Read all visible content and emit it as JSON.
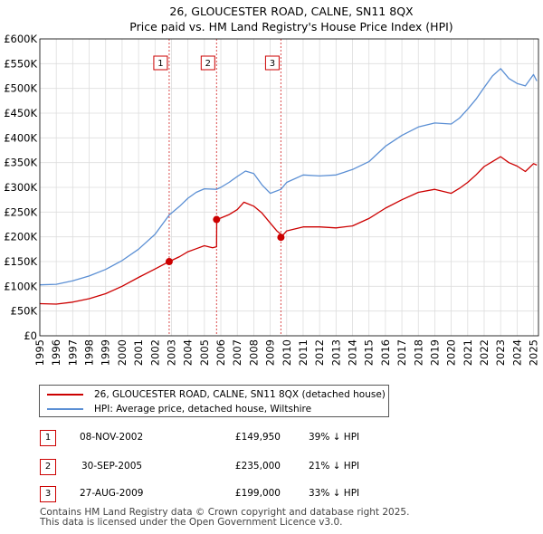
{
  "chart_data": {
    "type": "line",
    "title": "26, GLOUCESTER ROAD, CALNE, SN11 8QX",
    "subtitle": "Price paid vs. HM Land Registry's House Price Index (HPI)",
    "xlim": [
      1995,
      2025.3
    ],
    "ylim": [
      0,
      600000
    ],
    "x_ticks": [
      "1995",
      "1996",
      "1997",
      "1998",
      "1999",
      "2000",
      "2001",
      "2002",
      "2003",
      "2004",
      "2005",
      "2006",
      "2007",
      "2008",
      "2009",
      "2010",
      "2011",
      "2012",
      "2013",
      "2014",
      "2015",
      "2016",
      "2017",
      "2018",
      "2019",
      "2020",
      "2021",
      "2022",
      "2023",
      "2024",
      "2025"
    ],
    "y_ticks": [
      {
        "value": 0,
        "label": "£0"
      },
      {
        "value": 50000,
        "label": "£50K"
      },
      {
        "value": 100000,
        "label": "£100K"
      },
      {
        "value": 150000,
        "label": "£150K"
      },
      {
        "value": 200000,
        "label": "£200K"
      },
      {
        "value": 250000,
        "label": "£250K"
      },
      {
        "value": 300000,
        "label": "£300K"
      },
      {
        "value": 350000,
        "label": "£350K"
      },
      {
        "value": 400000,
        "label": "£400K"
      },
      {
        "value": 450000,
        "label": "£450K"
      },
      {
        "value": 500000,
        "label": "£500K"
      },
      {
        "value": 550000,
        "label": "£550K"
      },
      {
        "value": 600000,
        "label": "£600K"
      }
    ],
    "series": [
      {
        "name": "26, GLOUCESTER ROAD, CALNE, SN11 8QX (detached house)",
        "color": "#cc0000",
        "x": [
          1995.0,
          1996.0,
          1997.0,
          1998.0,
          1999.0,
          2000.0,
          2001.0,
          2002.0,
          2002.86,
          2003.5,
          2004.0,
          2004.5,
          2005.0,
          2005.5,
          2005.74,
          2005.75,
          2006.0,
          2006.5,
          2007.0,
          2007.4,
          2008.0,
          2008.5,
          2009.0,
          2009.4,
          2009.65,
          2009.66,
          2010.0,
          2011.0,
          2012.0,
          2013.0,
          2014.0,
          2015.0,
          2016.0,
          2017.0,
          2018.0,
          2019.0,
          2020.0,
          2020.5,
          2021.0,
          2021.5,
          2022.0,
          2022.5,
          2023.0,
          2023.5,
          2024.0,
          2024.5,
          2025.0,
          2025.2
        ],
        "y": [
          65000,
          64000,
          68000,
          75000,
          85000,
          100000,
          118000,
          135000,
          149950,
          160000,
          170000,
          176000,
          182000,
          178000,
          180000,
          235000,
          238000,
          245000,
          255000,
          270000,
          262000,
          248000,
          228000,
          212000,
          205000,
          199000,
          212000,
          220000,
          220000,
          218000,
          222000,
          237000,
          258000,
          275000,
          290000,
          296000,
          288000,
          298000,
          310000,
          325000,
          342000,
          352000,
          362000,
          350000,
          343000,
          332000,
          348000,
          345000
        ]
      },
      {
        "name": "HPI: Average price, detached house, Wiltshire",
        "color": "#5b8fd4",
        "x": [
          1995.0,
          1996.0,
          1997.0,
          1998.0,
          1999.0,
          2000.0,
          2001.0,
          2002.0,
          2002.86,
          2003.5,
          2004.0,
          2004.5,
          2005.0,
          2005.74,
          2006.0,
          2006.5,
          2007.0,
          2007.5,
          2008.0,
          2008.5,
          2009.0,
          2009.65,
          2010.0,
          2011.0,
          2012.0,
          2013.0,
          2014.0,
          2015.0,
          2016.0,
          2017.0,
          2018.0,
          2019.0,
          2020.0,
          2020.5,
          2021.0,
          2021.5,
          2022.0,
          2022.5,
          2023.0,
          2023.5,
          2024.0,
          2024.5,
          2025.0,
          2025.2
        ],
        "y": [
          103000,
          104000,
          111000,
          121000,
          134000,
          152000,
          175000,
          205000,
          244000,
          262000,
          278000,
          290000,
          297000,
          296000,
          300000,
          310000,
          322000,
          333000,
          328000,
          305000,
          288000,
          296000,
          310000,
          325000,
          323000,
          325000,
          336000,
          352000,
          383000,
          405000,
          422000,
          430000,
          428000,
          440000,
          458000,
          478000,
          502000,
          525000,
          540000,
          520000,
          510000,
          505000,
          528000,
          515000
        ]
      }
    ],
    "transactions": [
      {
        "id": "1",
        "x": 2002.86,
        "y": 149950
      },
      {
        "id": "2",
        "x": 2005.74,
        "y": 235000
      },
      {
        "id": "3",
        "x": 2009.65,
        "y": 199000
      }
    ]
  },
  "legend": {
    "property_label": "26, GLOUCESTER ROAD, CALNE, SN11 8QX (detached house)",
    "hpi_label": "HPI: Average price, detached house, Wiltshire"
  },
  "table": [
    {
      "num": "1",
      "date": "08-NOV-2002",
      "price": "£149,950",
      "hpi": "39% ↓ HPI"
    },
    {
      "num": "2",
      "date": "30-SEP-2005",
      "price": "£235,000",
      "hpi": "21% ↓ HPI"
    },
    {
      "num": "3",
      "date": "27-AUG-2009",
      "price": "£199,000",
      "hpi": "33% ↓ HPI"
    }
  ],
  "footer": {
    "line1": "Contains HM Land Registry data © Crown copyright and database right 2025.",
    "line2": "This data is licensed under the Open Government Licence v3.0."
  },
  "colors": {
    "property": "#cc0000",
    "hpi": "#5b8fd4",
    "grid": "#dddddd",
    "vline": "#cc0000"
  }
}
